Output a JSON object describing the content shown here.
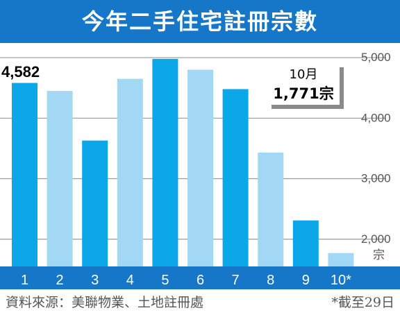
{
  "title": "今年二手住宅註冊宗數",
  "colors": {
    "title_bg": "#1677c8",
    "axis_band": "#1677c8",
    "bar_dark": "#0ba7e8",
    "bar_light": "#a3d8f4",
    "grid": "#9a9a9a",
    "tick_text": "#555555"
  },
  "chart_data": {
    "type": "bar",
    "categories": [
      "1",
      "2",
      "3",
      "4",
      "5",
      "6",
      "7",
      "8",
      "9",
      "10*"
    ],
    "values": [
      4582,
      4450,
      3630,
      4650,
      4980,
      4800,
      4480,
      3430,
      2310,
      1771
    ],
    "shades": [
      "dark",
      "light",
      "dark",
      "light",
      "dark",
      "light",
      "dark",
      "light",
      "dark",
      "light"
    ],
    "ylim": [
      1550,
      5150
    ],
    "yticks": [
      2000,
      3000,
      4000,
      5000
    ],
    "ytick_labels": [
      "2,000",
      "3,000",
      "4,000",
      "5,000"
    ],
    "yunit": "宗",
    "grid": true,
    "annotations": {
      "first_value": "4,582",
      "callout_month": "10月",
      "callout_value": "1,771宗"
    }
  },
  "source": "資料來源：美聯物業、土地註冊處",
  "footnote": "*截至29日"
}
